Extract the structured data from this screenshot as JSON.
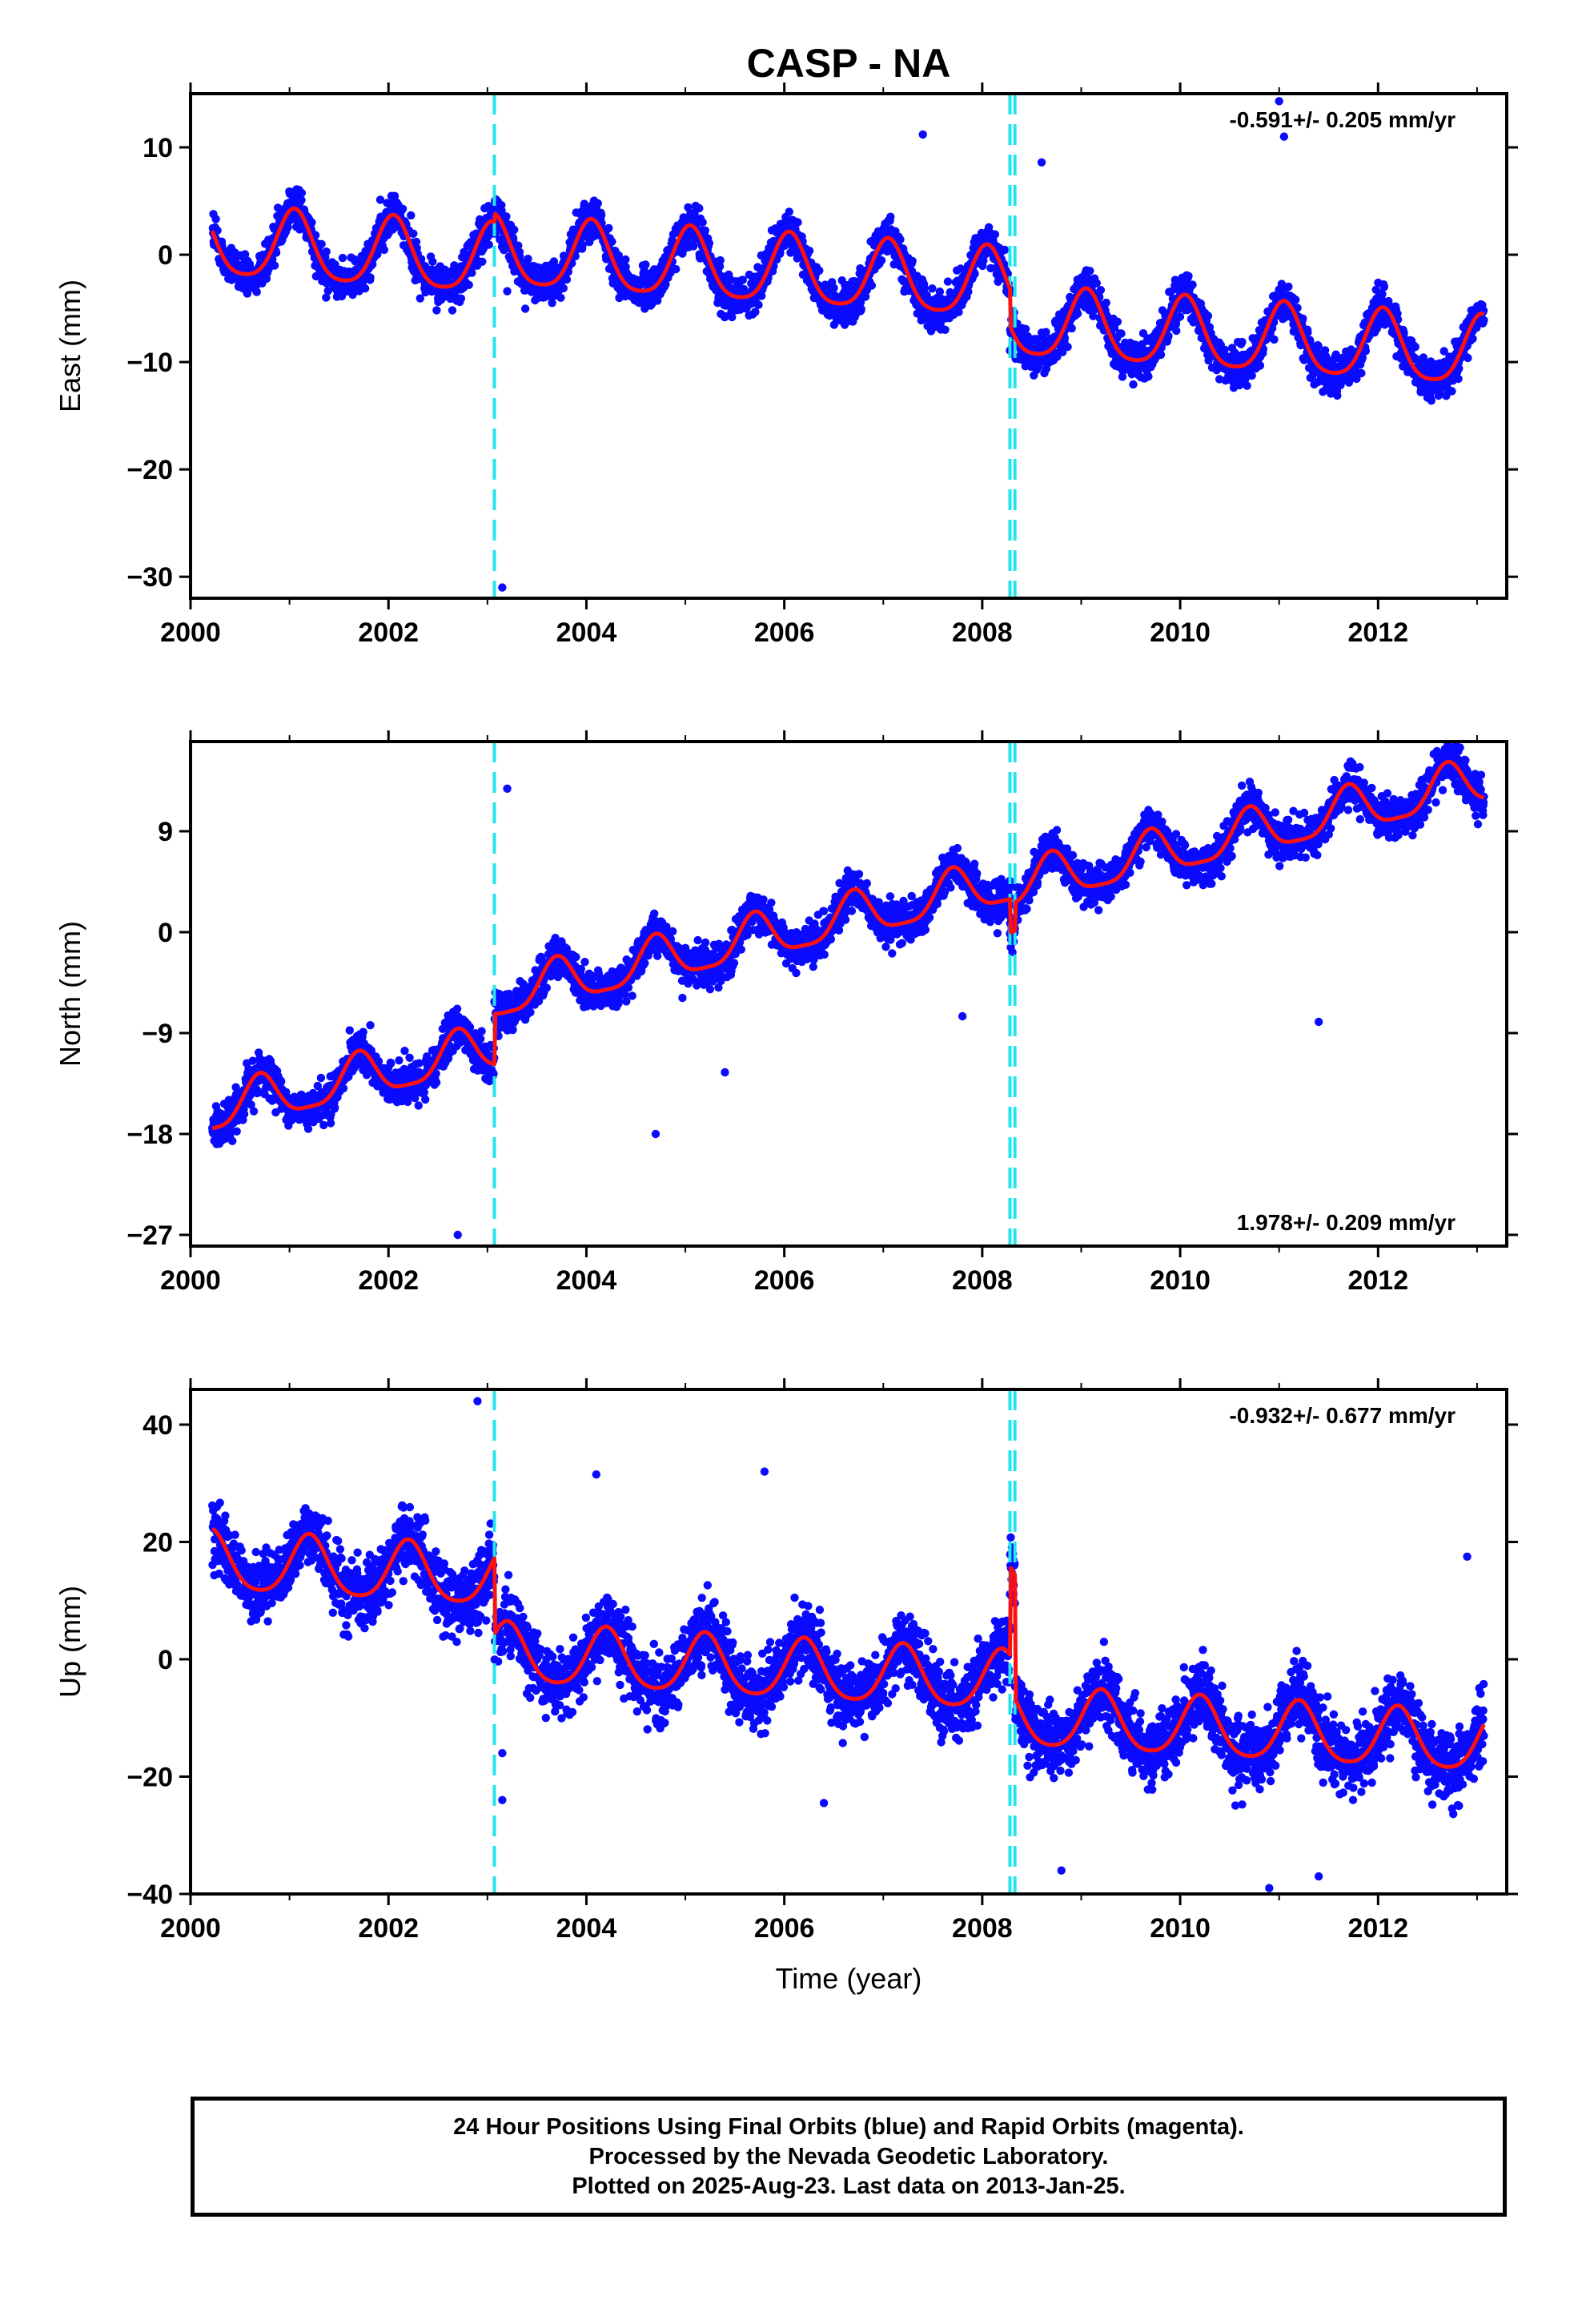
{
  "title": "CASP - NA",
  "colors": {
    "points": "#0a0aff",
    "model": "#ff1010",
    "offset_lines": "#22e6ee",
    "frame": "#000000"
  },
  "chart_data": [
    {
      "type": "scatter",
      "name": "east",
      "ylabel": "East (mm)",
      "xlabel": "",
      "xlim": [
        2000,
        2013.3
      ],
      "ylim": [
        -32,
        15
      ],
      "x_ticks": [
        2000,
        2002,
        2004,
        2006,
        2008,
        2010,
        2012
      ],
      "x_tick_labels": [
        "2000",
        "2002",
        "2004",
        "2006",
        "2008",
        "2010",
        "2012"
      ],
      "y_ticks": [
        10,
        0,
        -10,
        -20,
        -30
      ],
      "y_tick_labels": [
        "10",
        "0",
        "−10",
        "−20",
        "−30"
      ],
      "rate": "-0.591+/- 0.205 mm/yr",
      "rate_position": "top-right",
      "data_range": [
        2000.22,
        2013.07
      ],
      "offsets": [
        2003.07,
        2008.28,
        2008.33
      ],
      "model": {
        "intercept": 1.0,
        "trend": -0.591,
        "annual_amp": 3.2,
        "annual_phase": 0.05,
        "semiannual_amp": 0.6,
        "steps": [
          0.8,
          -3.5,
          0.0
        ]
      },
      "noise": 1.6,
      "outliers": [
        [
          2003.15,
          -31.0
        ],
        [
          2011.0,
          14.3
        ],
        [
          2011.05,
          11.0
        ],
        [
          2007.4,
          11.2
        ],
        [
          2008.6,
          8.6
        ],
        [
          2003.2,
          -3.4
        ]
      ]
    },
    {
      "type": "scatter",
      "name": "north",
      "ylabel": "North (mm)",
      "xlabel": "",
      "xlim": [
        2000,
        2013.3
      ],
      "ylim": [
        -28,
        17
      ],
      "x_ticks": [
        2000,
        2002,
        2004,
        2006,
        2008,
        2010,
        2012
      ],
      "x_tick_labels": [
        "2000",
        "2002",
        "2004",
        "2006",
        "2008",
        "2010",
        "2012"
      ],
      "y_ticks": [
        9,
        0,
        -9,
        -18,
        -27
      ],
      "y_tick_labels": [
        "9",
        "0",
        "−9",
        "−18",
        "−27"
      ],
      "rate": "1.978+/- 0.209 mm/yr",
      "rate_position": "bottom-right",
      "data_range": [
        2000.22,
        2013.07
      ],
      "offsets": [
        2003.07,
        2008.28,
        2008.33
      ],
      "model": {
        "intercept": -16.0,
        "trend": 1.978,
        "annual_amp": 2.0,
        "annual_phase": -0.3,
        "semiannual_amp": 0.5,
        "steps": [
          4.5,
          -3.0,
          2.5
        ]
      },
      "noise": 1.5,
      "outliers": [
        [
          2003.2,
          12.8
        ],
        [
          2002.7,
          -27.0
        ],
        [
          2004.7,
          -18.0
        ],
        [
          2011.4,
          -8.0
        ],
        [
          2005.4,
          -12.5
        ],
        [
          2007.8,
          -7.5
        ]
      ]
    },
    {
      "type": "scatter",
      "name": "up",
      "ylabel": "Up (mm)",
      "xlabel": "Time (year)",
      "xlim": [
        2000,
        2013.3
      ],
      "ylim": [
        -40,
        46
      ],
      "x_ticks": [
        2000,
        2002,
        2004,
        2006,
        2008,
        2010,
        2012
      ],
      "x_tick_labels": [
        "2000",
        "2002",
        "2004",
        "2006",
        "2008",
        "2010",
        "2012"
      ],
      "y_ticks": [
        40,
        20,
        0,
        -20,
        -40
      ],
      "y_tick_labels": [
        "40",
        "20",
        "0",
        "−20",
        "−40"
      ],
      "rate": "-0.932+/- 0.677 mm/yr",
      "rate_position": "top-right",
      "data_range": [
        2000.22,
        2013.07
      ],
      "offsets": [
        2003.07,
        2008.28,
        2008.33
      ],
      "model": {
        "intercept": 16.5,
        "trend": -0.932,
        "annual_amp": 5.0,
        "annual_phase": 0.2,
        "semiannual_amp": 0.8,
        "steps": [
          -13.0,
          15.0,
          -21.0
        ]
      },
      "noise": 5.0,
      "outliers": [
        [
          2002.9,
          44.0
        ],
        [
          2003.15,
          -24.0
        ],
        [
          2003.15,
          -16.0
        ],
        [
          2008.8,
          -36.0
        ],
        [
          2010.9,
          -39.0
        ],
        [
          2011.4,
          -37.0
        ],
        [
          2006.4,
          -24.5
        ],
        [
          2005.8,
          32.0
        ],
        [
          2004.1,
          31.5
        ],
        [
          2012.9,
          17.5
        ]
      ]
    }
  ],
  "footer": {
    "line1": "24 Hour Positions Using Final Orbits (blue) and Rapid Orbits (magenta).",
    "line2": "Processed by the Nevada Geodetic Laboratory.",
    "line3": "Plotted on 2025-Aug-23. Last data on 2013-Jan-25."
  }
}
